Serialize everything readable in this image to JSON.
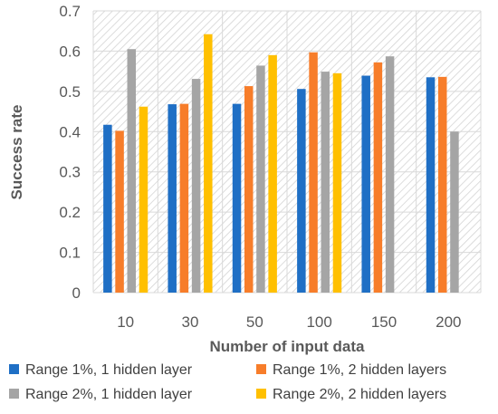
{
  "chart_data": {
    "type": "bar",
    "title": "",
    "xlabel": "Number of input data",
    "ylabel": "Success rate",
    "categories": [
      "10",
      "30",
      "50",
      "100",
      "150",
      "200"
    ],
    "ylim": [
      0,
      0.7
    ],
    "yticks": [
      "0",
      "0.1",
      "0.2",
      "0.3",
      "0.4",
      "0.5",
      "0.6",
      "0.7"
    ],
    "grid": true,
    "legend_position": "bottom",
    "series": [
      {
        "name": "Range 1%, 1 hidden layer",
        "color": "#1f6fc5",
        "values": [
          0.417,
          0.468,
          0.469,
          0.506,
          0.539,
          0.535
        ]
      },
      {
        "name": "Range 1%, 2 hidden layers",
        "color": "#f77d2a",
        "values": [
          0.402,
          0.469,
          0.513,
          0.597,
          0.572,
          0.536
        ]
      },
      {
        "name": "Range 2%, 1 hidden layer",
        "color": "#a5a5a5",
        "values": [
          0.605,
          0.531,
          0.564,
          0.549,
          0.587,
          0.4
        ]
      },
      {
        "name": "Range 2%, 2 hidden layers",
        "color": "#ffc000",
        "values": [
          0.462,
          0.642,
          0.59,
          0.545,
          null,
          null
        ]
      }
    ]
  }
}
